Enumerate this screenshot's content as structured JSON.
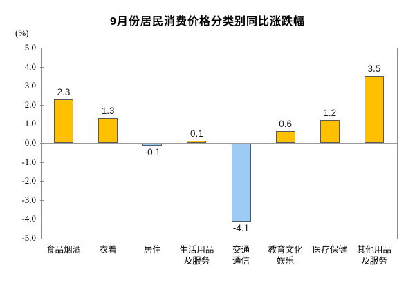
{
  "title": "9月份居民消费价格分类别同比涨跌幅",
  "y_axis_unit": "(%)",
  "chart_data": {
    "type": "bar",
    "title": "9月份居民消费价格分类别同比涨跌幅",
    "xlabel": "",
    "ylabel": "(%)",
    "ylim": [
      -5.0,
      5.0
    ],
    "ytick_step": 1.0,
    "ytick_labels": [
      "5.0",
      "4.0",
      "3.0",
      "2.0",
      "1.0",
      "0.0",
      "-1.0",
      "-2.0",
      "-3.0",
      "-4.0",
      "-5.0"
    ],
    "grid": false,
    "legend_position": "none",
    "categories": [
      "食品烟酒",
      "衣着",
      "居住",
      "生活用品\n及服务",
      "交通\n通信",
      "教育文化\n娱乐",
      "医疗保健",
      "其他用品\n及服务"
    ],
    "values": [
      2.3,
      1.3,
      -0.1,
      0.1,
      -4.1,
      0.6,
      1.2,
      3.5
    ],
    "data_labels": [
      "2.3",
      "1.3",
      "-0.1",
      "0.1",
      "-4.1",
      "0.6",
      "1.2",
      "3.5"
    ],
    "colors": {
      "positive_fill": "#FFC000",
      "positive_border": "#595959",
      "negative_fill": "#9CCBF5",
      "negative_border": "#4d5b6b",
      "axis": "#8c8c8c",
      "text": "#000000"
    }
  }
}
